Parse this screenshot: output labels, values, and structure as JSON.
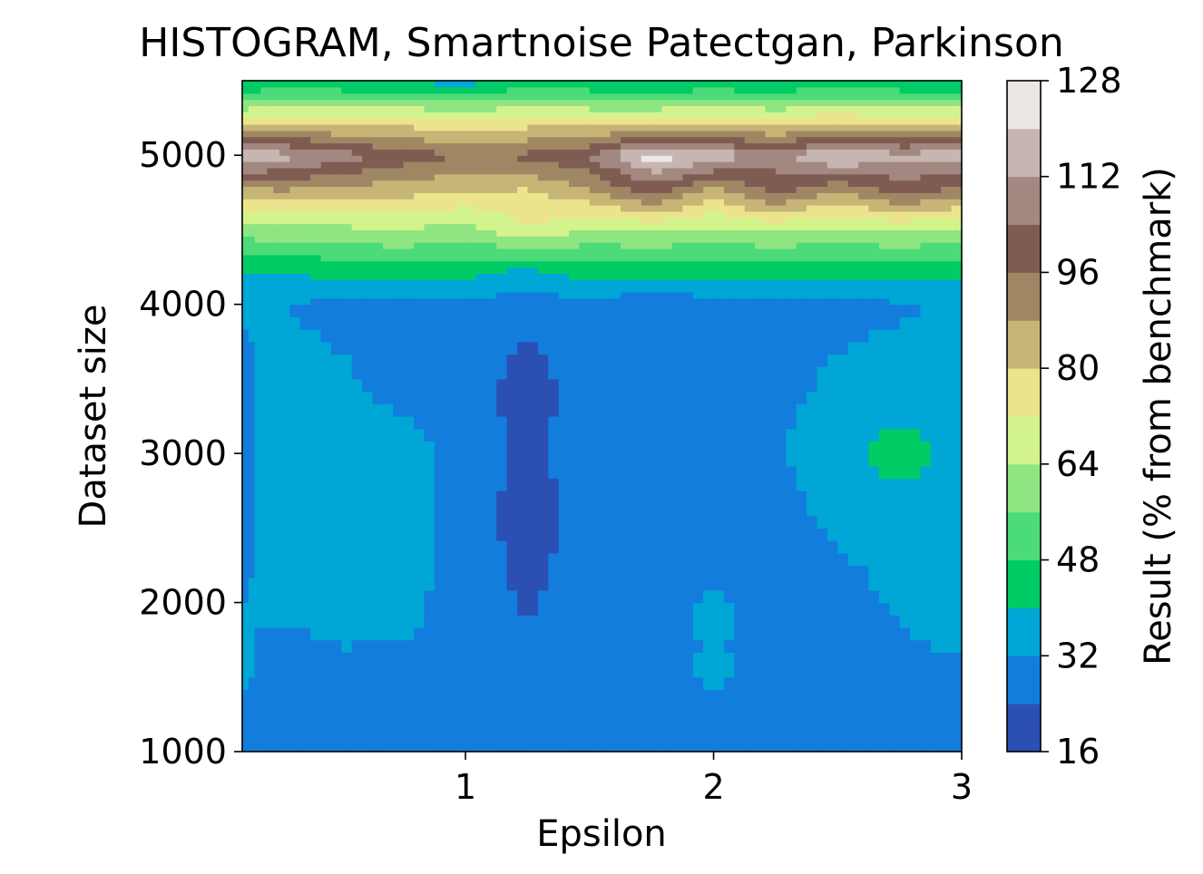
{
  "chart_data": {
    "type": "heatmap",
    "subtype": "filled-contour",
    "title": "HISTOGRAM, Smartnoise Patectgan, Parkinson",
    "xlabel": "Epsilon",
    "ylabel": "Dataset size",
    "xlim": [
      0.1,
      3.0
    ],
    "ylim": [
      1000,
      5500
    ],
    "xticks": [
      1,
      2,
      3
    ],
    "xtick_labels": [
      "1",
      "2",
      "3"
    ],
    "yticks": [
      1000,
      2000,
      3000,
      4000,
      5000
    ],
    "ytick_labels": [
      "1000",
      "2000",
      "3000",
      "4000",
      "5000"
    ],
    "colorbar": {
      "label": "Result (% from benchmark)",
      "min": 16,
      "max": 128,
      "ticks": [
        16,
        32,
        48,
        64,
        80,
        96,
        112,
        128
      ],
      "levels": [
        16,
        24,
        32,
        40,
        48,
        56,
        64,
        72,
        80,
        88,
        96,
        104,
        112,
        120,
        128
      ],
      "colors": [
        "#2b4fb3",
        "#127ddd",
        "#00a6d5",
        "#00cc66",
        "#4cdb79",
        "#8ee581",
        "#d3f38d",
        "#ebe48c",
        "#c7b577",
        "#a08764",
        "#7f5c52",
        "#a38881",
        "#c6b5b1",
        "#ece6e5"
      ]
    },
    "x": [
      0.1,
      0.25,
      0.5,
      0.75,
      1.0,
      1.25,
      1.5,
      1.75,
      2.0,
      2.25,
      2.5,
      2.75,
      3.0
    ],
    "y": [
      1000,
      1500,
      2000,
      2500,
      3000,
      3500,
      4000,
      4250,
      4500,
      4750,
      5000,
      5250,
      5500
    ],
    "z": [
      [
        29,
        29,
        29,
        29,
        29,
        29,
        29,
        29,
        29,
        29,
        29,
        29,
        31
      ],
      [
        33,
        29,
        30,
        30,
        29,
        29,
        29,
        29,
        33,
        29,
        29,
        29,
        29
      ],
      [
        32,
        33,
        35,
        34,
        29,
        23,
        28,
        29,
        33,
        29,
        29,
        33,
        40
      ],
      [
        30,
        35,
        35,
        35,
        29,
        20,
        28,
        29,
        30,
        29,
        33,
        35,
        35
      ],
      [
        30,
        35,
        35,
        35,
        29,
        21,
        29,
        29,
        29,
        31,
        37,
        44,
        37
      ],
      [
        30,
        35,
        33,
        29,
        29,
        20,
        29,
        29,
        29,
        30,
        33,
        35,
        35
      ],
      [
        33,
        32,
        30,
        30,
        30,
        27,
        30,
        24,
        30,
        30,
        30,
        31,
        33
      ],
      [
        42,
        42,
        44,
        46,
        44,
        40,
        46,
        46,
        44,
        46,
        44,
        46,
        44
      ],
      [
        60,
        62,
        62,
        64,
        60,
        72,
        62,
        64,
        62,
        64,
        62,
        64,
        62
      ],
      [
        82,
        86,
        84,
        82,
        80,
        78,
        86,
        98,
        84,
        98,
        86,
        98,
        92
      ],
      [
        122,
        116,
        108,
        100,
        96,
        98,
        104,
        124,
        118,
        108,
        122,
        114,
        118
      ],
      [
        72,
        74,
        72,
        74,
        70,
        74,
        72,
        72,
        74,
        72,
        76,
        72,
        74
      ],
      [
        38,
        42,
        40,
        38,
        36,
        42,
        40,
        38,
        40,
        38,
        42,
        40,
        38
      ]
    ]
  }
}
